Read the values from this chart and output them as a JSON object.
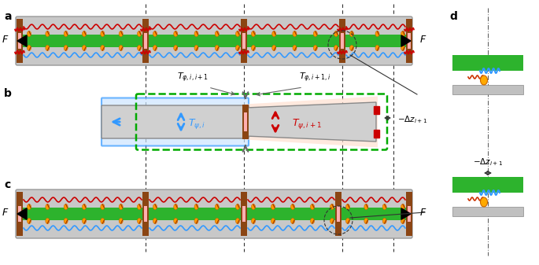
{
  "fig_width": 6.85,
  "fig_height": 3.37,
  "bg_color": "#ffffff",
  "panel_labels": [
    "a",
    "b",
    "c",
    "d"
  ],
  "sarcomere_green": "#2db32d",
  "sarcomere_dark_green": "#1a8a1a",
  "zline_brown": "#8B4513",
  "myosin_gray": "#aaaaaa",
  "actin_red": "#cc0000",
  "actin_blue": "#3399ff",
  "titin_orange": "#ff9900",
  "light_green_bg": "#d4edda",
  "light_blue_bg": "#cce5ff",
  "light_red_bg": "#ffe0d0",
  "dashed_green": "#00aa00",
  "arrow_blue": "#3399ff",
  "arrow_red": "#cc0000",
  "arrow_gray": "#666666"
}
